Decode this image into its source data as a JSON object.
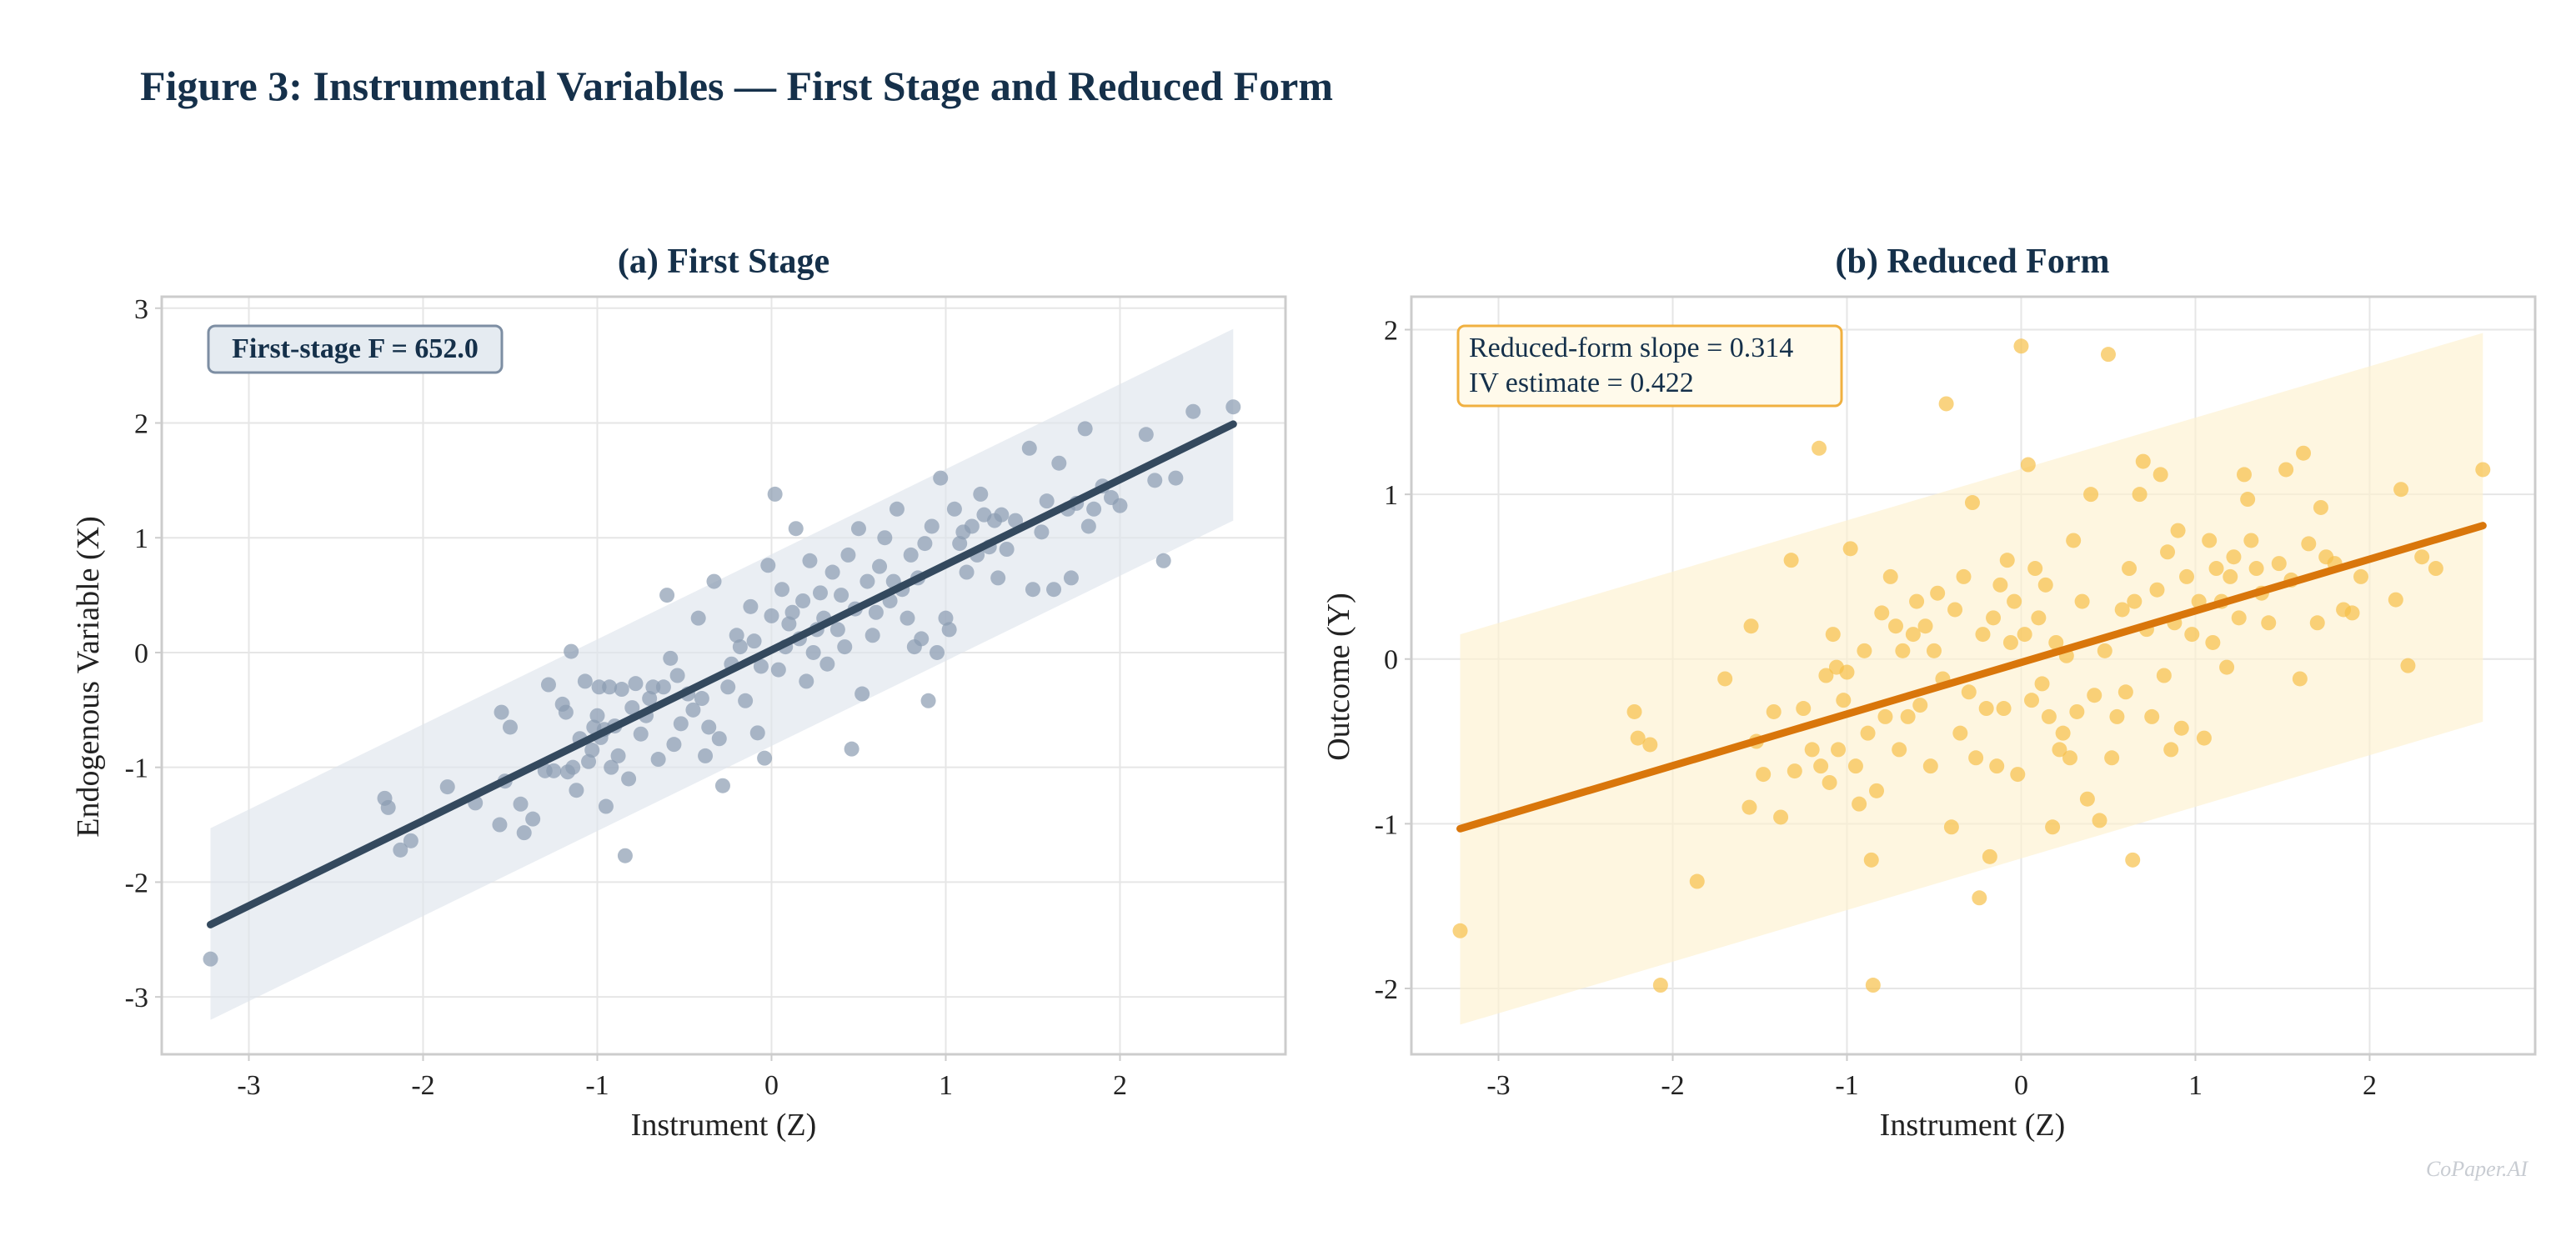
{
  "figure": {
    "title": "Figure 3: Instrumental Variables — First Stage and Reduced Form",
    "watermark": "CoPaper.AI"
  },
  "colors": {
    "panel_a_points": "#8a9bb0",
    "panel_a_line": "#34495e",
    "panel_a_band": "#dfe5ec",
    "panel_b_points": "#f7c04a",
    "panel_b_line": "#d9760b",
    "panel_b_band": "#fdf1cf",
    "title": "#15304a"
  },
  "chart_data": [
    {
      "type": "scatter",
      "title": "(a) First Stage",
      "xlabel": "Instrument (Z)",
      "ylabel": "Endogenous Variable (X)",
      "xlim": [
        -3.5,
        2.95
      ],
      "ylim": [
        -3.5,
        3.1
      ],
      "xticks": [
        -3,
        -2,
        -1,
        0,
        1,
        2
      ],
      "yticks": [
        -3,
        -2,
        -1,
        0,
        1,
        2,
        3
      ],
      "grid": true,
      "annotation": "First-stage F = 652.0",
      "annotation_position": "top-left",
      "fit_line": {
        "x": [
          -3.22,
          2.65
        ],
        "y": [
          -2.37,
          1.99
        ]
      },
      "band": {
        "x": [
          -3.22,
          2.65
        ],
        "lower": [
          -3.2,
          1.15
        ],
        "upper": [
          -1.53,
          2.82
        ]
      },
      "points": [
        [
          -3.22,
          -2.67
        ],
        [
          -2.22,
          -1.27
        ],
        [
          -2.2,
          -1.35
        ],
        [
          -2.13,
          -1.72
        ],
        [
          -2.07,
          -1.64
        ],
        [
          -1.86,
          -1.17
        ],
        [
          -1.7,
          -1.31
        ],
        [
          -1.56,
          -1.5
        ],
        [
          -1.55,
          -0.52
        ],
        [
          -1.53,
          -1.12
        ],
        [
          -1.5,
          -0.65
        ],
        [
          -1.44,
          -1.32
        ],
        [
          -1.42,
          -1.57
        ],
        [
          -1.37,
          -1.45
        ],
        [
          -1.3,
          -1.03
        ],
        [
          -1.28,
          -0.28
        ],
        [
          -1.25,
          -1.03
        ],
        [
          -1.2,
          -0.45
        ],
        [
          -1.18,
          -0.52
        ],
        [
          -1.17,
          -1.04
        ],
        [
          -1.15,
          0.01
        ],
        [
          -1.14,
          -1.0
        ],
        [
          -1.12,
          -1.2
        ],
        [
          -1.1,
          -0.75
        ],
        [
          -1.07,
          -0.25
        ],
        [
          -1.05,
          -0.95
        ],
        [
          -1.03,
          -0.85
        ],
        [
          -1.02,
          -0.65
        ],
        [
          -1.0,
          -0.55
        ],
        [
          -0.99,
          -0.3
        ],
        [
          -0.98,
          -0.74
        ],
        [
          -0.96,
          -0.67
        ],
        [
          -0.95,
          -1.34
        ],
        [
          -0.93,
          -0.3
        ],
        [
          -0.92,
          -1.0
        ],
        [
          -0.9,
          -0.64
        ],
        [
          -0.88,
          -0.9
        ],
        [
          -0.86,
          -0.32
        ],
        [
          -0.84,
          -1.77
        ],
        [
          -0.82,
          -1.1
        ],
        [
          -0.8,
          -0.48
        ],
        [
          -0.78,
          -0.27
        ],
        [
          -0.75,
          -0.71
        ],
        [
          -0.72,
          -0.55
        ],
        [
          -0.7,
          -0.4
        ],
        [
          -0.68,
          -0.3
        ],
        [
          -0.65,
          -0.93
        ],
        [
          -0.62,
          -0.3
        ],
        [
          -0.6,
          0.5
        ],
        [
          -0.58,
          -0.05
        ],
        [
          -0.56,
          -0.8
        ],
        [
          -0.54,
          -0.2
        ],
        [
          -0.52,
          -0.62
        ],
        [
          -0.48,
          -0.36
        ],
        [
          -0.45,
          -0.5
        ],
        [
          -0.42,
          0.3
        ],
        [
          -0.4,
          -0.4
        ],
        [
          -0.38,
          -0.9
        ],
        [
          -0.36,
          -0.65
        ],
        [
          -0.33,
          0.62
        ],
        [
          -0.3,
          -0.75
        ],
        [
          -0.28,
          -1.16
        ],
        [
          -0.25,
          -0.3
        ],
        [
          -0.23,
          -0.1
        ],
        [
          -0.2,
          0.15
        ],
        [
          -0.18,
          0.05
        ],
        [
          -0.15,
          -0.42
        ],
        [
          -0.12,
          0.4
        ],
        [
          -0.1,
          0.1
        ],
        [
          -0.08,
          -0.7
        ],
        [
          -0.06,
          -0.12
        ],
        [
          -0.04,
          -0.92
        ],
        [
          -0.02,
          0.76
        ],
        [
          0.0,
          0.32
        ],
        [
          0.02,
          1.38
        ],
        [
          0.04,
          -0.15
        ],
        [
          0.06,
          0.55
        ],
        [
          0.08,
          0.05
        ],
        [
          0.1,
          0.25
        ],
        [
          0.12,
          0.35
        ],
        [
          0.14,
          1.08
        ],
        [
          0.16,
          0.12
        ],
        [
          0.18,
          0.45
        ],
        [
          0.2,
          -0.25
        ],
        [
          0.22,
          0.8
        ],
        [
          0.24,
          0.0
        ],
        [
          0.26,
          0.2
        ],
        [
          0.28,
          0.52
        ],
        [
          0.3,
          0.3
        ],
        [
          0.32,
          -0.1
        ],
        [
          0.35,
          0.7
        ],
        [
          0.38,
          0.2
        ],
        [
          0.4,
          0.5
        ],
        [
          0.42,
          0.05
        ],
        [
          0.44,
          0.85
        ],
        [
          0.46,
          -0.84
        ],
        [
          0.48,
          0.38
        ],
        [
          0.5,
          1.08
        ],
        [
          0.52,
          -0.36
        ],
        [
          0.55,
          0.62
        ],
        [
          0.58,
          0.15
        ],
        [
          0.6,
          0.35
        ],
        [
          0.62,
          0.75
        ],
        [
          0.65,
          1.0
        ],
        [
          0.68,
          0.45
        ],
        [
          0.7,
          0.62
        ],
        [
          0.72,
          1.25
        ],
        [
          0.75,
          0.55
        ],
        [
          0.78,
          0.3
        ],
        [
          0.8,
          0.85
        ],
        [
          0.82,
          0.05
        ],
        [
          0.84,
          0.65
        ],
        [
          0.86,
          0.12
        ],
        [
          0.88,
          0.95
        ],
        [
          0.9,
          -0.42
        ],
        [
          0.92,
          1.1
        ],
        [
          0.95,
          0.0
        ],
        [
          0.97,
          1.52
        ],
        [
          1.0,
          0.3
        ],
        [
          1.02,
          0.2
        ],
        [
          1.05,
          1.25
        ],
        [
          1.08,
          0.95
        ],
        [
          1.1,
          1.05
        ],
        [
          1.12,
          0.7
        ],
        [
          1.15,
          1.1
        ],
        [
          1.18,
          0.85
        ],
        [
          1.2,
          1.38
        ],
        [
          1.22,
          1.2
        ],
        [
          1.25,
          0.92
        ],
        [
          1.28,
          1.15
        ],
        [
          1.3,
          0.65
        ],
        [
          1.32,
          1.2
        ],
        [
          1.35,
          0.9
        ],
        [
          1.4,
          1.15
        ],
        [
          1.48,
          1.78
        ],
        [
          1.5,
          0.55
        ],
        [
          1.55,
          1.05
        ],
        [
          1.58,
          1.32
        ],
        [
          1.62,
          0.55
        ],
        [
          1.65,
          1.65
        ],
        [
          1.7,
          1.25
        ],
        [
          1.72,
          0.65
        ],
        [
          1.75,
          1.3
        ],
        [
          1.8,
          1.95
        ],
        [
          1.82,
          1.1
        ],
        [
          1.85,
          1.25
        ],
        [
          1.9,
          1.45
        ],
        [
          1.95,
          1.35
        ],
        [
          2.0,
          1.28
        ],
        [
          2.15,
          1.9
        ],
        [
          2.2,
          1.5
        ],
        [
          2.25,
          0.8
        ],
        [
          2.32,
          1.52
        ],
        [
          2.42,
          2.1
        ],
        [
          2.65,
          2.14
        ]
      ]
    },
    {
      "type": "scatter",
      "title": "(b) Reduced Form",
      "xlabel": "Instrument (Z)",
      "ylabel": "Outcome (Y)",
      "xlim": [
        -3.5,
        2.95
      ],
      "ylim": [
        -2.4,
        2.2
      ],
      "xticks": [
        -3,
        -2,
        -1,
        0,
        1,
        2
      ],
      "yticks": [
        -2,
        -1,
        0,
        1,
        2
      ],
      "grid": true,
      "annotation": [
        "Reduced-form slope = 0.314",
        "IV estimate = 0.422"
      ],
      "annotation_position": "top-left",
      "fit_line": {
        "x": [
          -3.22,
          2.65
        ],
        "y": [
          -1.03,
          0.81
        ]
      },
      "band": {
        "x": [
          -3.22,
          2.65
        ],
        "lower": [
          -2.22,
          -0.38
        ],
        "upper": [
          0.15,
          1.98
        ]
      },
      "points": [
        [
          -3.22,
          -1.65
        ],
        [
          -2.22,
          -0.32
        ],
        [
          -2.2,
          -0.48
        ],
        [
          -2.13,
          -0.52
        ],
        [
          -2.07,
          -1.98
        ],
        [
          -1.86,
          -1.35
        ],
        [
          -1.7,
          -0.12
        ],
        [
          -1.56,
          -0.9
        ],
        [
          -1.55,
          0.2
        ],
        [
          -1.52,
          -0.5
        ],
        [
          -1.48,
          -0.7
        ],
        [
          -1.42,
          -0.32
        ],
        [
          -1.38,
          -0.96
        ],
        [
          -1.32,
          0.6
        ],
        [
          -1.3,
          -0.68
        ],
        [
          -1.25,
          -0.3
        ],
        [
          -1.2,
          -0.55
        ],
        [
          -1.16,
          1.28
        ],
        [
          -1.15,
          -0.65
        ],
        [
          -1.12,
          -0.1
        ],
        [
          -1.1,
          -0.75
        ],
        [
          -1.08,
          0.15
        ],
        [
          -1.06,
          -0.05
        ],
        [
          -1.05,
          -0.55
        ],
        [
          -1.02,
          -0.25
        ],
        [
          -1.0,
          -0.08
        ],
        [
          -0.98,
          0.67
        ],
        [
          -0.95,
          -0.65
        ],
        [
          -0.93,
          -0.88
        ],
        [
          -0.9,
          0.05
        ],
        [
          -0.88,
          -0.45
        ],
        [
          -0.86,
          -1.22
        ],
        [
          -0.85,
          -1.98
        ],
        [
          -0.83,
          -0.8
        ],
        [
          -0.8,
          0.28
        ],
        [
          -0.78,
          -0.35
        ],
        [
          -0.75,
          0.5
        ],
        [
          -0.72,
          0.2
        ],
        [
          -0.7,
          -0.55
        ],
        [
          -0.68,
          0.05
        ],
        [
          -0.65,
          -0.35
        ],
        [
          -0.62,
          0.15
        ],
        [
          -0.6,
          0.35
        ],
        [
          -0.58,
          -0.28
        ],
        [
          -0.55,
          0.2
        ],
        [
          -0.52,
          -0.65
        ],
        [
          -0.5,
          0.05
        ],
        [
          -0.48,
          0.4
        ],
        [
          -0.45,
          -0.12
        ],
        [
          -0.43,
          1.55
        ],
        [
          -0.4,
          -1.02
        ],
        [
          -0.38,
          0.3
        ],
        [
          -0.35,
          -0.45
        ],
        [
          -0.33,
          0.5
        ],
        [
          -0.3,
          -0.2
        ],
        [
          -0.28,
          0.95
        ],
        [
          -0.26,
          -0.6
        ],
        [
          -0.24,
          -1.45
        ],
        [
          -0.22,
          0.15
        ],
        [
          -0.2,
          -0.3
        ],
        [
          -0.18,
          -1.2
        ],
        [
          -0.16,
          0.25
        ],
        [
          -0.14,
          -0.65
        ],
        [
          -0.12,
          0.45
        ],
        [
          -0.1,
          -0.3
        ],
        [
          -0.08,
          0.6
        ],
        [
          -0.06,
          0.1
        ],
        [
          -0.04,
          0.35
        ],
        [
          -0.02,
          -0.7
        ],
        [
          0.0,
          1.9
        ],
        [
          0.02,
          0.15
        ],
        [
          0.04,
          1.18
        ],
        [
          0.06,
          -0.25
        ],
        [
          0.08,
          0.55
        ],
        [
          0.1,
          0.25
        ],
        [
          0.12,
          -0.15
        ],
        [
          0.14,
          0.45
        ],
        [
          0.16,
          -0.35
        ],
        [
          0.18,
          -1.02
        ],
        [
          0.2,
          0.1
        ],
        [
          0.22,
          -0.55
        ],
        [
          0.24,
          -0.45
        ],
        [
          0.26,
          0.02
        ],
        [
          0.28,
          -0.6
        ],
        [
          0.3,
          0.72
        ],
        [
          0.32,
          -0.32
        ],
        [
          0.35,
          0.35
        ],
        [
          0.38,
          -0.85
        ],
        [
          0.4,
          1.0
        ],
        [
          0.42,
          -0.22
        ],
        [
          0.45,
          -0.98
        ],
        [
          0.48,
          0.05
        ],
        [
          0.5,
          1.85
        ],
        [
          0.52,
          -0.6
        ],
        [
          0.55,
          -0.35
        ],
        [
          0.58,
          0.3
        ],
        [
          0.6,
          -0.2
        ],
        [
          0.62,
          0.55
        ],
        [
          0.64,
          -1.22
        ],
        [
          0.65,
          0.35
        ],
        [
          0.68,
          1.0
        ],
        [
          0.7,
          1.2
        ],
        [
          0.72,
          0.18
        ],
        [
          0.75,
          -0.35
        ],
        [
          0.78,
          0.42
        ],
        [
          0.8,
          1.12
        ],
        [
          0.82,
          -0.1
        ],
        [
          0.84,
          0.65
        ],
        [
          0.86,
          -0.55
        ],
        [
          0.88,
          0.22
        ],
        [
          0.9,
          0.78
        ],
        [
          0.92,
          -0.42
        ],
        [
          0.95,
          0.5
        ],
        [
          0.98,
          0.15
        ],
        [
          1.02,
          0.35
        ],
        [
          1.05,
          -0.48
        ],
        [
          1.08,
          0.72
        ],
        [
          1.1,
          0.1
        ],
        [
          1.12,
          0.55
        ],
        [
          1.15,
          0.35
        ],
        [
          1.18,
          -0.05
        ],
        [
          1.2,
          0.5
        ],
        [
          1.22,
          0.62
        ],
        [
          1.25,
          0.25
        ],
        [
          1.28,
          1.12
        ],
        [
          1.3,
          0.97
        ],
        [
          1.32,
          0.72
        ],
        [
          1.35,
          0.55
        ],
        [
          1.38,
          0.4
        ],
        [
          1.42,
          0.22
        ],
        [
          1.48,
          0.58
        ],
        [
          1.52,
          1.15
        ],
        [
          1.55,
          0.48
        ],
        [
          1.6,
          -0.12
        ],
        [
          1.62,
          1.25
        ],
        [
          1.65,
          0.7
        ],
        [
          1.7,
          0.22
        ],
        [
          1.72,
          0.92
        ],
        [
          1.75,
          0.62
        ],
        [
          1.8,
          0.58
        ],
        [
          1.85,
          0.3
        ],
        [
          1.9,
          0.28
        ],
        [
          1.95,
          0.5
        ],
        [
          2.15,
          0.36
        ],
        [
          2.18,
          1.03
        ],
        [
          2.22,
          -0.04
        ],
        [
          2.3,
          0.62
        ],
        [
          2.38,
          0.55
        ],
        [
          2.65,
          1.15
        ]
      ]
    }
  ]
}
